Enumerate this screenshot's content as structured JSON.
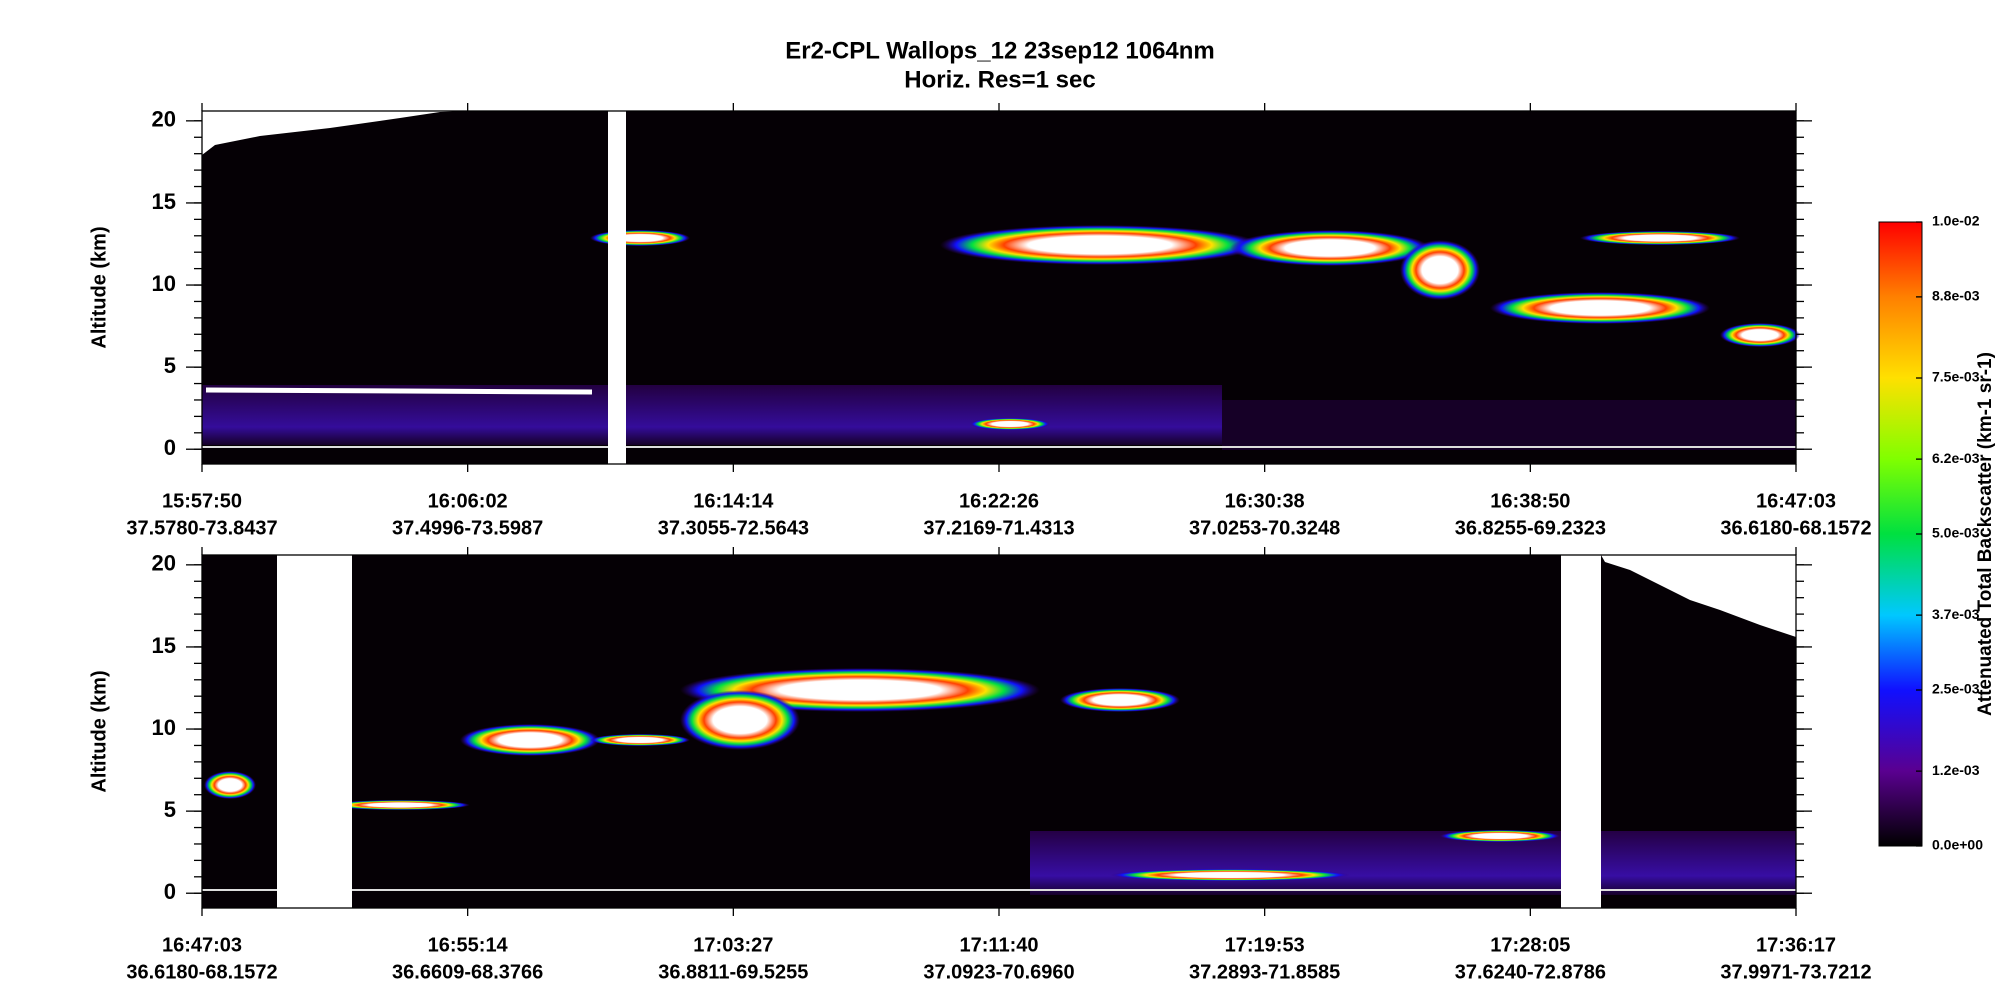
{
  "chart_data": [
    {
      "type": "heatmap",
      "title": "Er2-CPL  Wallops_12  23sep12  1064nm",
      "subtitle": "Horiz. Res=1 sec",
      "ylabel": "Altitude (km)",
      "ylim": [
        -0.9,
        20.6
      ],
      "yticks": [
        0,
        5,
        10,
        15,
        20
      ],
      "xticks": [
        {
          "time": "15:57:50",
          "location": "37.5780-73.8437"
        },
        {
          "time": "16:06:02",
          "location": "37.4996-73.5987"
        },
        {
          "time": "16:14:14",
          "location": "37.3055-72.5643"
        },
        {
          "time": "16:22:26",
          "location": "37.2169-71.4313"
        },
        {
          "time": "16:30:38",
          "location": "37.0253-70.3248"
        },
        {
          "time": "16:38:50",
          "location": "36.8255-69.2323"
        },
        {
          "time": "16:47:03",
          "location": "36.6180-68.1572"
        }
      ]
    },
    {
      "type": "heatmap",
      "ylabel": "Altitude (km)",
      "ylim": [
        -0.9,
        20.6
      ],
      "yticks": [
        0,
        5,
        10,
        15,
        20
      ],
      "xticks": [
        {
          "time": "16:47:03",
          "location": "36.6180-68.1572"
        },
        {
          "time": "16:55:14",
          "location": "36.6609-68.3766"
        },
        {
          "time": "17:03:27",
          "location": "36.8811-69.5255"
        },
        {
          "time": "17:11:40",
          "location": "37.0923-70.6960"
        },
        {
          "time": "17:19:53",
          "location": "37.2893-71.8585"
        },
        {
          "time": "17:28:05",
          "location": "37.6240-72.8786"
        },
        {
          "time": "17:36:17",
          "location": "37.9971-73.7212"
        }
      ]
    },
    {
      "type": "colorbar",
      "label": "Attenuated Total Backscatter (km-1 sr-1)",
      "clim": [
        0,
        0.01
      ],
      "ticks": [
        {
          "value": 0,
          "label": "0.0e+00"
        },
        {
          "value": 0.0012,
          "label": "1.2e-03"
        },
        {
          "value": 0.0025,
          "label": "2.5e-03"
        },
        {
          "value": 0.0037,
          "label": "3.7e-03"
        },
        {
          "value": 0.005,
          "label": "5.0e-03"
        },
        {
          "value": 0.0062,
          "label": "6.2e-03"
        },
        {
          "value": 0.0075,
          "label": "7.5e-03"
        },
        {
          "value": 0.0088,
          "label": "8.8e-03"
        },
        {
          "value": 0.01,
          "label": "1.0e-02"
        }
      ]
    }
  ]
}
